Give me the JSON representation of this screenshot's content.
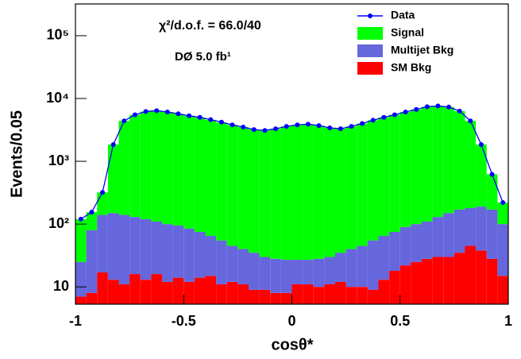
{
  "chart_data": {
    "type": "histogram",
    "xlabel": "cosθ*",
    "ylabel": "Events/0.05",
    "annotations": [
      "χ²/d.o.f. = 66.0/40",
      "DØ 5.0 fb¹"
    ],
    "bins": [
      -1,
      -0.95,
      -0.9,
      -0.85,
      -0.8,
      -0.75,
      -0.7,
      -0.65,
      -0.6,
      -0.55,
      -0.5,
      -0.45,
      -0.4,
      -0.35,
      -0.3,
      -0.25,
      -0.2,
      -0.15,
      -0.1,
      -0.05,
      0,
      0.05,
      0.1,
      0.15,
      0.2,
      0.25,
      0.3,
      0.35,
      0.4,
      0.45,
      0.5,
      0.55,
      0.6,
      0.65,
      0.7,
      0.75,
      0.8,
      0.85,
      0.9,
      0.95,
      1
    ],
    "series": [
      {
        "name": "SM Bkg",
        "color": "#ff0000",
        "values": [
          7,
          8,
          17,
          13,
          11,
          16,
          13,
          16,
          12,
          14,
          12,
          14,
          15,
          11,
          12,
          11,
          9,
          9,
          8,
          8,
          11,
          11,
          10,
          11,
          12,
          10,
          10,
          9,
          13,
          18,
          22,
          25,
          28,
          30,
          30,
          35,
          45,
          38,
          28,
          15
        ]
      },
      {
        "name": "Multijet Bkg",
        "color": "#6666dd",
        "values": [
          18,
          72,
          123,
          137,
          129,
          114,
          107,
          94,
          88,
          81,
          73,
          61,
          50,
          44,
          33,
          29,
          26,
          21,
          20,
          19,
          16,
          16,
          18,
          19,
          23,
          30,
          35,
          46,
          52,
          57,
          68,
          75,
          82,
          100,
          120,
          135,
          135,
          152,
          142,
          85
        ]
      },
      {
        "name": "Signal",
        "color": "#00ff00",
        "values": [
          95,
          75,
          180,
          1700,
          4260,
          5370,
          6080,
          6290,
          6000,
          5600,
          5200,
          4900,
          4500,
          4100,
          3750,
          3460,
          3170,
          3070,
          3270,
          3570,
          3770,
          3870,
          3670,
          3370,
          3270,
          3560,
          3950,
          4450,
          4940,
          5430,
          6010,
          6600,
          7290,
          7470,
          7150,
          6130,
          4220,
          1660,
          450,
          120
        ]
      }
    ],
    "data": {
      "name": "Data",
      "color": "#0000ff",
      "values": [
        120,
        155,
        320,
        1850,
        4400,
        5500,
        6200,
        6400,
        6100,
        5700,
        5300,
        5000,
        4600,
        4200,
        3800,
        3500,
        3200,
        3100,
        3300,
        3600,
        3800,
        3900,
        3700,
        3400,
        3300,
        3600,
        4000,
        4500,
        5000,
        5500,
        6100,
        6700,
        7400,
        7600,
        7300,
        6300,
        4400,
        1850,
        620,
        220
      ]
    },
    "xlim": [
      -1,
      1
    ],
    "xticks": [
      -1,
      -0.5,
      0,
      0.5,
      1
    ],
    "ylim": [
      5.3,
      320000
    ],
    "log_y": true,
    "yticks": [
      10,
      {
        "value": 100,
        "label": "10²"
      },
      {
        "value": 1000,
        "label": "10³"
      },
      {
        "value": 10000,
        "label": "10⁴"
      },
      {
        "value": 100000,
        "label": "10⁵"
      }
    ],
    "legend": "upper right"
  }
}
